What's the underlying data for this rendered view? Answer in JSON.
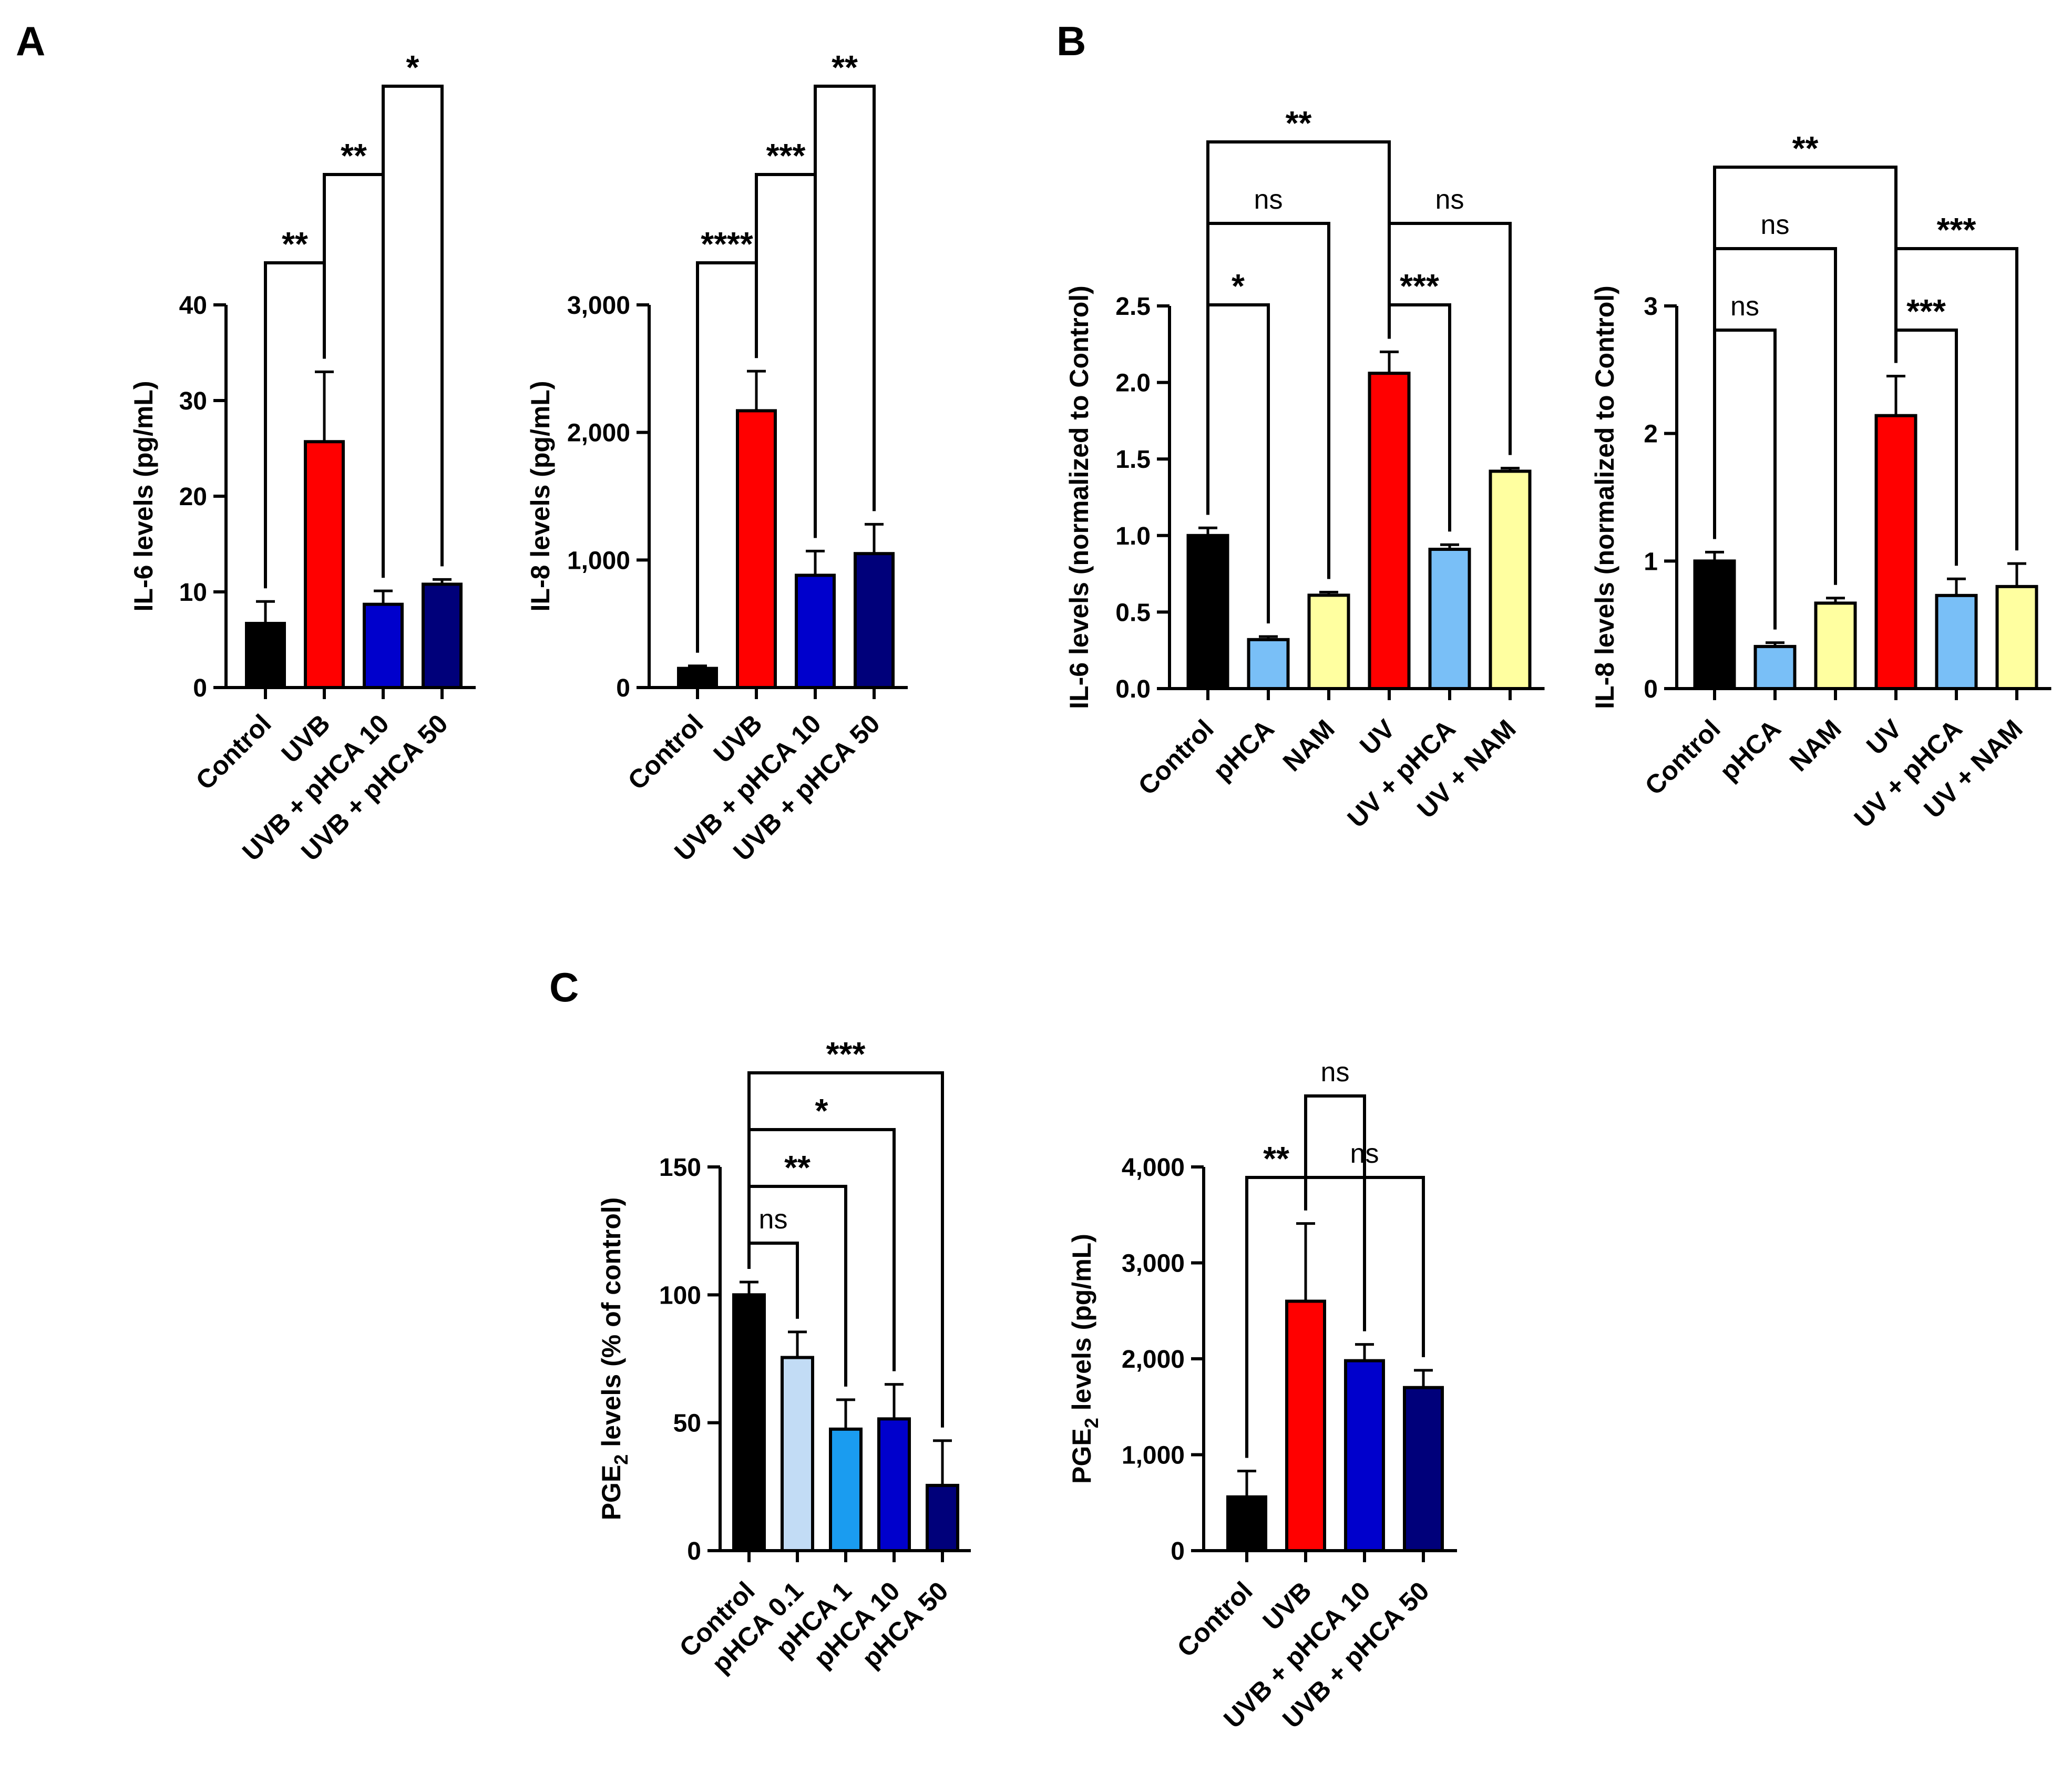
{
  "panels": [
    {
      "label": "A"
    },
    {
      "label": "B"
    },
    {
      "label": "C"
    }
  ],
  "chart_data": [
    {
      "panel": "A",
      "type": "bar",
      "categories": [
        "Control",
        "UVB",
        "UVB + pHCA 10",
        "UVB + pHCA 50"
      ],
      "values": [
        6.7,
        25.7,
        8.7,
        10.8
      ],
      "errors": [
        2.3,
        7.3,
        1.4,
        0.5
      ],
      "colors": [
        "#000000",
        "#ff0000",
        "#0000cc",
        "#00007a"
      ],
      "ylabel": "IL-6 levels (pg/mL)",
      "ylim": [
        0,
        40
      ],
      "yticks": [
        0,
        10,
        20,
        30,
        40
      ],
      "ytick_labels": [
        "0",
        "10",
        "20",
        "30",
        "40"
      ],
      "significance": [
        {
          "from": 0,
          "to": 1,
          "label": "**",
          "level": 1
        },
        {
          "from": 1,
          "to": 2,
          "label": "**",
          "level": 2
        },
        {
          "from": 2,
          "to": 3,
          "label": "*",
          "level": 3
        }
      ]
    },
    {
      "panel": "A",
      "type": "bar",
      "categories": [
        "Control",
        "UVB",
        "UVB + pHCA 10",
        "UVB + pHCA 50"
      ],
      "values": [
        150,
        2170,
        880,
        1050
      ],
      "errors": [
        20,
        310,
        190,
        230
      ],
      "colors": [
        "#000000",
        "#ff0000",
        "#0000cc",
        "#00007a"
      ],
      "ylabel": "IL-8 levels (pg/mL)",
      "ylim": [
        0,
        3000
      ],
      "yticks": [
        0,
        1000,
        2000,
        3000
      ],
      "ytick_labels": [
        "0",
        "1,000",
        "2,000",
        "3,000"
      ],
      "significance": [
        {
          "from": 0,
          "to": 1,
          "label": "****",
          "level": 1
        },
        {
          "from": 1,
          "to": 2,
          "label": "***",
          "level": 2
        },
        {
          "from": 2,
          "to": 3,
          "label": "**",
          "level": 3
        }
      ]
    },
    {
      "panel": "B",
      "type": "bar",
      "categories": [
        "Control",
        "pHCA",
        "NAM",
        "UV",
        "UV + pHCA",
        "UV + NAM"
      ],
      "values": [
        1.0,
        0.32,
        0.61,
        2.06,
        0.91,
        1.42
      ],
      "errors": [
        0.05,
        0.02,
        0.02,
        0.14,
        0.03,
        0.02
      ],
      "colors": [
        "#000000",
        "#79bff7",
        "#ffffa0",
        "#ff0000",
        "#79bff7",
        "#ffffa0"
      ],
      "ylabel": "IL-6 levels (normalized to Control)",
      "ylim": [
        0,
        2.5
      ],
      "yticks": [
        0,
        0.5,
        1.0,
        1.5,
        2.0,
        2.5
      ],
      "ytick_labels": [
        "0.0",
        "0.5",
        "1.0",
        "1.5",
        "2.0",
        "2.5"
      ],
      "significance": [
        {
          "from": 0,
          "to": 1,
          "label": "*",
          "level": 1
        },
        {
          "from": 0,
          "to": 2,
          "label": "ns",
          "level": 2
        },
        {
          "from": 0,
          "to": 3,
          "label": "**",
          "level": 3
        },
        {
          "from": 3,
          "to": 4,
          "label": "***",
          "level": 1
        },
        {
          "from": 3,
          "to": 5,
          "label": "ns",
          "level": 2
        }
      ]
    },
    {
      "panel": "B",
      "type": "bar",
      "categories": [
        "Control",
        "pHCA",
        "NAM",
        "UV",
        "UV + pHCA",
        "UV + NAM"
      ],
      "values": [
        1.0,
        0.33,
        0.67,
        2.14,
        0.73,
        0.8
      ],
      "errors": [
        0.07,
        0.03,
        0.04,
        0.31,
        0.13,
        0.18
      ],
      "colors": [
        "#000000",
        "#79bff7",
        "#ffffa0",
        "#ff0000",
        "#79bff7",
        "#ffffa0"
      ],
      "ylabel": "IL-8 levels (normalized to Control)",
      "ylim": [
        0,
        3
      ],
      "yticks": [
        0,
        1,
        2,
        3
      ],
      "ytick_labels": [
        "0",
        "1",
        "2",
        "3"
      ],
      "significance": [
        {
          "from": 0,
          "to": 1,
          "label": "ns",
          "level": 1
        },
        {
          "from": 0,
          "to": 2,
          "label": "ns",
          "level": 2
        },
        {
          "from": 0,
          "to": 3,
          "label": "**",
          "level": 3
        },
        {
          "from": 3,
          "to": 4,
          "label": "***",
          "level": 1
        },
        {
          "from": 3,
          "to": 5,
          "label": "***",
          "level": 2
        }
      ]
    },
    {
      "panel": "C",
      "type": "bar",
      "categories": [
        "Control",
        "pHCA 0.1",
        "pHCA 1",
        "pHCA 10",
        "pHCA 50"
      ],
      "values": [
        100,
        75.5,
        47.5,
        51.5,
        25.5
      ],
      "errors": [
        5,
        10,
        11.5,
        13.5,
        17.5
      ],
      "colors": [
        "#000000",
        "#c2dcf5",
        "#1a9cf0",
        "#0000cc",
        "#00007a"
      ],
      "ylabel": "PGE2 levels (% of control)",
      "ylabel_main": "PGE",
      "ylabel_sub": "2",
      "ylabel_rest": " levels (% of control)",
      "ylim": [
        0,
        150
      ],
      "yticks": [
        0,
        50,
        100,
        150
      ],
      "ytick_labels": [
        "0",
        "50",
        "100",
        "150"
      ],
      "significance": [
        {
          "from": 0,
          "to": 1,
          "label": "ns",
          "level": 1
        },
        {
          "from": 0,
          "to": 2,
          "label": "**",
          "level": 2
        },
        {
          "from": 0,
          "to": 3,
          "label": "*",
          "level": 3
        },
        {
          "from": 0,
          "to": 4,
          "label": "***",
          "level": 4
        }
      ]
    },
    {
      "panel": "C",
      "type": "bar",
      "categories": [
        "Control",
        "UVB",
        "UVB + pHCA 10",
        "UVB + pHCA 50"
      ],
      "values": [
        560,
        2600,
        1980,
        1700
      ],
      "errors": [
        270,
        810,
        170,
        180
      ],
      "colors": [
        "#000000",
        "#ff0000",
        "#0000cc",
        "#00007a"
      ],
      "ylabel": "PGE2 levels (pg/mL)",
      "ylabel_main": "PGE",
      "ylabel_sub": "2",
      "ylabel_rest": " levels (pg/mL)",
      "ylim": [
        0,
        4000
      ],
      "yticks": [
        0,
        1000,
        2000,
        3000,
        4000
      ],
      "ytick_labels": [
        "0",
        "1,000",
        "2,000",
        "3,000",
        "4,000"
      ],
      "significance": [
        {
          "from": 0,
          "to": 1,
          "label": "**",
          "level": 1
        },
        {
          "from": 1,
          "to": 3,
          "label": "ns",
          "level": 1
        },
        {
          "from": 1,
          "to": 2,
          "label": "ns",
          "level": 2
        }
      ]
    }
  ]
}
